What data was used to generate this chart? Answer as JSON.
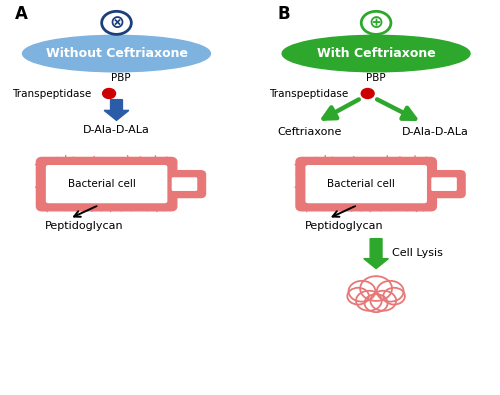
{
  "panel_A_label": "A",
  "panel_B_label": "B",
  "ellipse_A_color": "#7eb3e0",
  "ellipse_B_color": "#2da82d",
  "ellipse_A_text": "Without Ceftriaxone",
  "ellipse_B_text": "With Ceftriaxone",
  "circle_A_symbol": "⊗",
  "circle_B_symbol": "⊕",
  "circle_color_A": "#1a3f7a",
  "circle_color_B": "#2da82d",
  "pbp_label": "PBP",
  "transpeptidase_label": "Transpeptidase",
  "red_dot_color": "#cc0000",
  "arrow_A_color": "#2b5ca8",
  "arrow_B_color": "#2da82d",
  "dala_label": "D-Ala-D-ALa",
  "bacterial_cell_label": "Bacterial cell",
  "peptidoglycan_label": "Peptidoglycan",
  "ceftriaxone_label": "Ceftriaxone",
  "cell_lysis_label": "Cell Lysis",
  "cell_color": "#e87878",
  "background_color": "#ffffff"
}
